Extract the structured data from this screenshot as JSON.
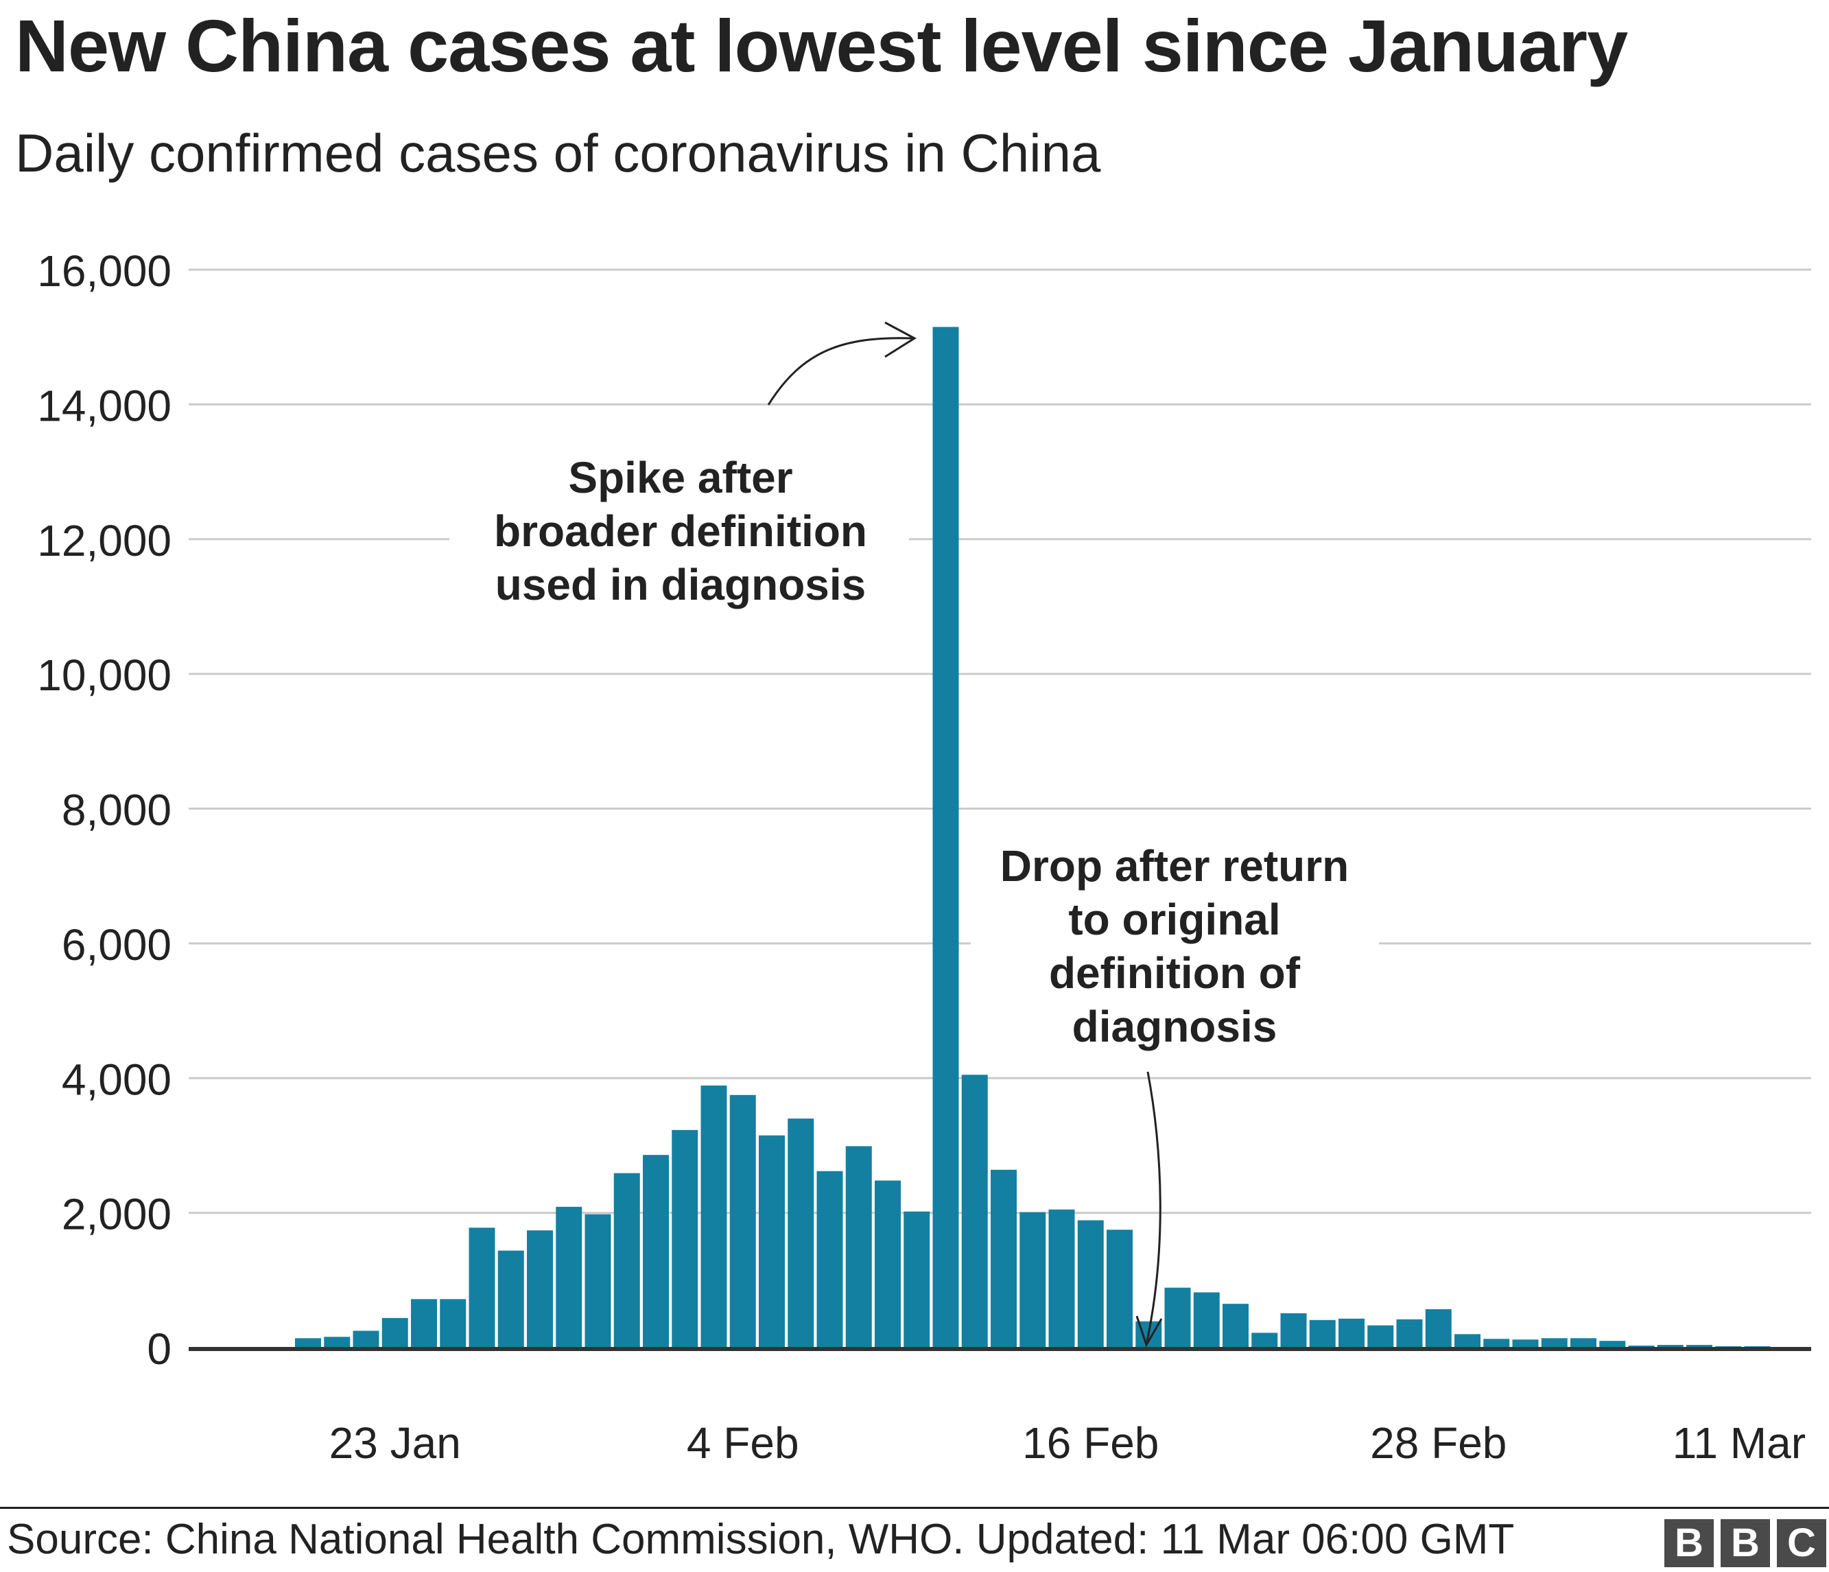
{
  "title": "New China cases at lowest level since January",
  "subtitle": "Daily confirmed cases of coronavirus in China",
  "footer": {
    "source": "Source: China National Health Commission, WHO. Updated: 11 Mar 06:00 GMT",
    "logo_letters": [
      "B",
      "B",
      "C"
    ]
  },
  "colors": {
    "bar": "#1380a1",
    "grid": "#cbcbcb",
    "text": "#222222",
    "baseline": "#333333"
  },
  "chart_data": {
    "type": "bar",
    "title": "New China cases at lowest level since January",
    "subtitle": "Daily confirmed cases of coronavirus in China",
    "xlabel": "",
    "ylabel": "",
    "ylim": [
      0,
      16000
    ],
    "yticks": [
      0,
      2000,
      4000,
      6000,
      8000,
      10000,
      12000,
      14000,
      16000
    ],
    "ytick_labels": [
      "0",
      "2,000",
      "4,000",
      "6,000",
      "8,000",
      "10,000",
      "12,000",
      "14,000",
      "16,000"
    ],
    "grid": true,
    "x_ticks": [
      {
        "label": "23 Jan",
        "date": "2020-01-23"
      },
      {
        "label": "4 Feb",
        "date": "2020-02-04"
      },
      {
        "label": "16 Feb",
        "date": "2020-02-16"
      },
      {
        "label": "28 Feb",
        "date": "2020-02-28"
      },
      {
        "label": "11 Mar",
        "date": "2020-03-11"
      }
    ],
    "categories": [
      "2020-01-16",
      "2020-01-17",
      "2020-01-18",
      "2020-01-19",
      "2020-01-20",
      "2020-01-21",
      "2020-01-22",
      "2020-01-23",
      "2020-01-24",
      "2020-01-25",
      "2020-01-26",
      "2020-01-27",
      "2020-01-28",
      "2020-01-29",
      "2020-01-30",
      "2020-01-31",
      "2020-02-01",
      "2020-02-02",
      "2020-02-03",
      "2020-02-04",
      "2020-02-05",
      "2020-02-06",
      "2020-02-07",
      "2020-02-08",
      "2020-02-09",
      "2020-02-10",
      "2020-02-11",
      "2020-02-12",
      "2020-02-13",
      "2020-02-14",
      "2020-02-15",
      "2020-02-16",
      "2020-02-17",
      "2020-02-18",
      "2020-02-19",
      "2020-02-20",
      "2020-02-21",
      "2020-02-22",
      "2020-02-23",
      "2020-02-24",
      "2020-02-25",
      "2020-02-26",
      "2020-02-27",
      "2020-02-28",
      "2020-02-29",
      "2020-03-01",
      "2020-03-02",
      "2020-03-03",
      "2020-03-04",
      "2020-03-05",
      "2020-03-06",
      "2020-03-07",
      "2020-03-08",
      "2020-03-09",
      "2020-03-10",
      "2020-03-11"
    ],
    "values": [
      0,
      0,
      0,
      0,
      140,
      160,
      250,
      440,
      720,
      720,
      1780,
      1440,
      1740,
      2090,
      1980,
      2590,
      2860,
      3230,
      3890,
      3750,
      3150,
      3400,
      2620,
      2990,
      2480,
      2020,
      15150,
      4050,
      2640,
      2010,
      2050,
      1890,
      1750,
      390,
      890,
      820,
      650,
      220,
      510,
      410,
      430,
      330,
      420,
      570,
      200,
      130,
      120,
      140,
      140,
      100,
      30,
      40,
      40,
      20,
      20,
      10
    ],
    "annotations": [
      {
        "text": [
          "Spike after",
          "broader definition",
          "used in diagnosis"
        ],
        "target_date": "2020-02-12"
      },
      {
        "text": [
          "Drop after return",
          "to original",
          "definition of",
          "diagnosis"
        ],
        "target_date": "2020-02-19"
      }
    ]
  }
}
